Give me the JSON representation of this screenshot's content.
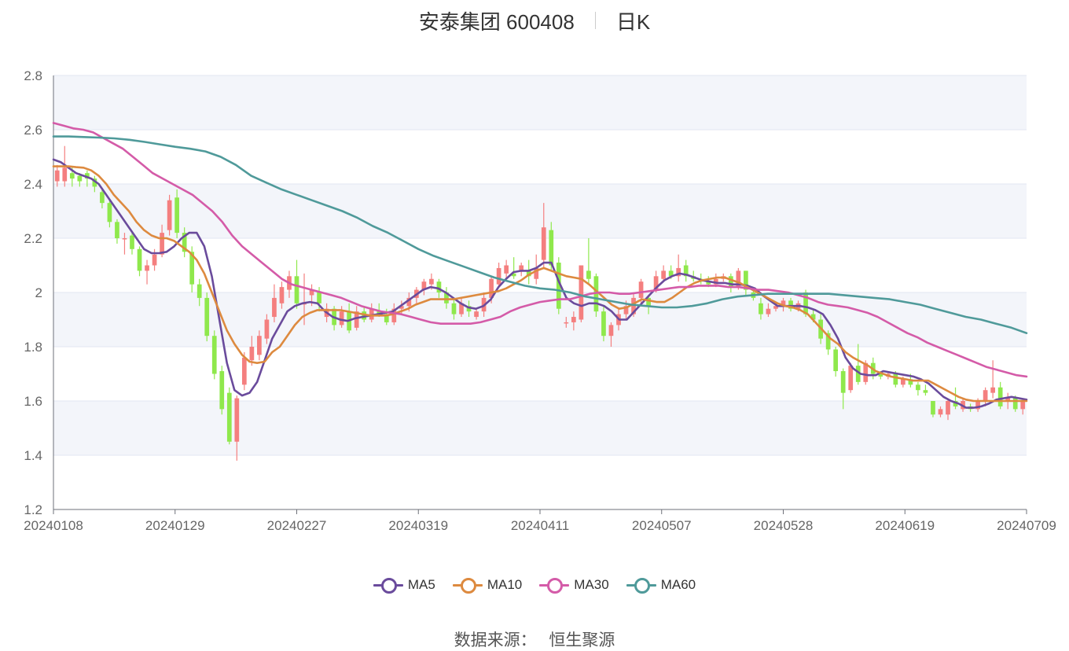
{
  "header": {
    "title": "安泰集团 600408",
    "period": "日K"
  },
  "footer": {
    "source_label": "数据来源：",
    "source_name": "恒生聚源"
  },
  "colors": {
    "up": "#f47f7f",
    "down": "#8fe84c",
    "MA5": "#6a4b9c",
    "MA10": "#dd8a3f",
    "MA30": "#d45ba8",
    "MA60": "#4f9a9a",
    "grid": "#e0e6f1",
    "band": "#f3f5fa"
  },
  "chart_data": {
    "type": "candlestick",
    "title": "安泰集团 600408",
    "ylim": [
      1.2,
      2.8
    ],
    "yticks": [
      "1.2",
      "1.4",
      "1.6",
      "1.8",
      "2",
      "2.2",
      "2.4",
      "2.6",
      "2.8"
    ],
    "xticks": [
      "20240108",
      "20240129",
      "20240227",
      "20240319",
      "20240411",
      "20240507",
      "20240528",
      "20240619",
      "20240709"
    ],
    "ohlc": [
      [
        2.41,
        2.45,
        2.39,
        2.47
      ],
      [
        2.41,
        2.46,
        2.39,
        2.54
      ],
      [
        2.44,
        2.42,
        2.39,
        2.46
      ],
      [
        2.43,
        2.41,
        2.39,
        2.44
      ],
      [
        2.44,
        2.42,
        2.39,
        2.45
      ],
      [
        2.42,
        2.39,
        2.37,
        2.43
      ],
      [
        2.37,
        2.33,
        2.31,
        2.38
      ],
      [
        2.33,
        2.26,
        2.24,
        2.34
      ],
      [
        2.26,
        2.2,
        2.18,
        2.27
      ],
      [
        2.2,
        2.2,
        2.14,
        2.22
      ],
      [
        2.21,
        2.16,
        2.14,
        2.22
      ],
      [
        2.16,
        2.08,
        2.06,
        2.17
      ],
      [
        2.08,
        2.1,
        2.03,
        2.12
      ],
      [
        2.1,
        2.14,
        2.08,
        2.16
      ],
      [
        2.14,
        2.22,
        2.13,
        2.25
      ],
      [
        2.23,
        2.34,
        2.21,
        2.36
      ],
      [
        2.35,
        2.22,
        2.2,
        2.38
      ],
      [
        2.22,
        2.15,
        2.13,
        2.24
      ],
      [
        2.15,
        2.03,
        2.0,
        2.17
      ],
      [
        2.03,
        1.98,
        1.95,
        2.05
      ],
      [
        1.98,
        1.84,
        1.82,
        2.0
      ],
      [
        1.84,
        1.7,
        1.68,
        1.86
      ],
      [
        1.71,
        1.57,
        1.55,
        1.73
      ],
      [
        1.63,
        1.45,
        1.44,
        1.65
      ],
      [
        1.45,
        1.61,
        1.38,
        1.62
      ],
      [
        1.66,
        1.76,
        1.64,
        1.78
      ],
      [
        1.75,
        1.8,
        1.73,
        1.84
      ],
      [
        1.77,
        1.84,
        1.75,
        1.86
      ],
      [
        1.83,
        1.9,
        1.81,
        1.92
      ],
      [
        1.91,
        1.98,
        1.89,
        2.03
      ],
      [
        1.96,
        2.02,
        1.94,
        2.04
      ],
      [
        2.01,
        2.06,
        1.98,
        2.08
      ],
      [
        2.06,
        1.96,
        1.94,
        2.12
      ],
      [
        1.96,
        1.96,
        1.88,
        2.07
      ],
      [
        1.99,
        2.01,
        1.95,
        2.03
      ],
      [
        2.0,
        1.96,
        1.93,
        2.02
      ],
      [
        1.91,
        1.94,
        1.89,
        1.96
      ],
      [
        1.94,
        1.88,
        1.86,
        1.95
      ],
      [
        1.88,
        1.93,
        1.87,
        1.95
      ],
      [
        1.93,
        1.86,
        1.85,
        1.96
      ],
      [
        1.87,
        1.93,
        1.86,
        1.95
      ],
      [
        1.93,
        1.9,
        1.89,
        1.95
      ],
      [
        1.9,
        1.94,
        1.89,
        1.96
      ],
      [
        1.93,
        1.92,
        1.91,
        1.96
      ],
      [
        1.92,
        1.89,
        1.88,
        1.94
      ],
      [
        1.89,
        1.94,
        1.88,
        1.96
      ],
      [
        1.94,
        1.95,
        1.92,
        1.97
      ],
      [
        1.95,
        1.98,
        1.93,
        2.0
      ],
      [
        1.98,
        2.01,
        1.96,
        2.02
      ],
      [
        2.01,
        2.04,
        1.99,
        2.05
      ],
      [
        2.03,
        2.05,
        2.01,
        2.07
      ],
      [
        2.04,
        2.0,
        1.98,
        2.05
      ],
      [
        2.0,
        1.96,
        1.94,
        2.02
      ],
      [
        1.96,
        1.92,
        1.9,
        1.98
      ],
      [
        1.92,
        1.96,
        1.91,
        1.98
      ],
      [
        1.95,
        1.93,
        1.91,
        1.97
      ],
      [
        1.91,
        1.93,
        1.9,
        1.94
      ],
      [
        1.93,
        1.98,
        1.91,
        2.0
      ],
      [
        1.98,
        2.05,
        1.96,
        2.06
      ],
      [
        2.03,
        2.09,
        2.02,
        2.11
      ],
      [
        2.07,
        2.1,
        2.05,
        2.12
      ],
      [
        2.07,
        2.06,
        2.05,
        2.13
      ],
      [
        2.08,
        2.1,
        2.06,
        2.11
      ],
      [
        2.08,
        2.06,
        2.03,
        2.12
      ],
      [
        2.05,
        2.09,
        2.03,
        2.14
      ],
      [
        2.12,
        2.24,
        2.09,
        2.33
      ],
      [
        2.23,
        2.1,
        2.08,
        2.26
      ],
      [
        2.11,
        1.94,
        1.92,
        2.13
      ],
      [
        1.89,
        1.89,
        1.87,
        1.91
      ],
      [
        1.89,
        1.91,
        1.86,
        1.93
      ],
      [
        1.9,
        2.1,
        1.89,
        2.1
      ],
      [
        2.08,
        2.05,
        2.03,
        2.2
      ],
      [
        2.06,
        1.93,
        1.91,
        2.07
      ],
      [
        1.93,
        1.84,
        1.82,
        1.95
      ],
      [
        1.84,
        1.88,
        1.8,
        1.89
      ],
      [
        1.88,
        1.92,
        1.86,
        1.94
      ],
      [
        1.92,
        1.95,
        1.9,
        1.97
      ],
      [
        1.92,
        1.98,
        1.91,
        2.0
      ],
      [
        1.98,
        2.04,
        1.96,
        2.05
      ],
      [
        1.98,
        1.95,
        1.92,
        1.99
      ],
      [
        2.01,
        2.06,
        2.0,
        2.08
      ],
      [
        2.05,
        2.08,
        2.04,
        2.1
      ],
      [
        2.08,
        2.06,
        2.05,
        2.1
      ],
      [
        2.06,
        2.09,
        2.04,
        2.14
      ],
      [
        2.1,
        2.06,
        2.04,
        2.12
      ],
      [
        2.06,
        2.05,
        2.04,
        2.08
      ],
      [
        2.05,
        2.04,
        2.03,
        2.07
      ],
      [
        2.04,
        2.03,
        2.02,
        2.06
      ],
      [
        2.03,
        2.05,
        2.02,
        2.07
      ],
      [
        2.05,
        2.06,
        2.04,
        2.07
      ],
      [
        2.06,
        2.02,
        2.0,
        2.07
      ],
      [
        2.02,
        2.08,
        2.01,
        2.09
      ],
      [
        2.08,
        2.01,
        1.99,
        2.08
      ],
      [
        2.0,
        1.98,
        1.97,
        2.02
      ],
      [
        1.96,
        1.92,
        1.9,
        1.98
      ],
      [
        1.92,
        1.94,
        1.91,
        1.96
      ],
      [
        1.94,
        1.95,
        1.93,
        1.96
      ],
      [
        1.95,
        1.97,
        1.93,
        1.98
      ],
      [
        1.97,
        1.94,
        1.93,
        1.98
      ],
      [
        1.94,
        1.96,
        1.93,
        1.97
      ],
      [
        2.0,
        1.92,
        1.91,
        2.01
      ],
      [
        1.92,
        1.9,
        1.89,
        1.94
      ],
      [
        1.9,
        1.83,
        1.81,
        1.92
      ],
      [
        1.85,
        1.79,
        1.77,
        1.86
      ],
      [
        1.79,
        1.71,
        1.69,
        1.8
      ],
      [
        1.71,
        1.63,
        1.57,
        1.72
      ],
      [
        1.64,
        1.73,
        1.63,
        1.74
      ],
      [
        1.73,
        1.67,
        1.66,
        1.81
      ],
      [
        1.67,
        1.74,
        1.66,
        1.75
      ],
      [
        1.74,
        1.7,
        1.68,
        1.76
      ],
      [
        1.7,
        1.69,
        1.68,
        1.71
      ],
      [
        1.69,
        1.7,
        1.68,
        1.71
      ],
      [
        1.7,
        1.66,
        1.65,
        1.71
      ],
      [
        1.66,
        1.68,
        1.65,
        1.69
      ],
      [
        1.68,
        1.66,
        1.65,
        1.7
      ],
      [
        1.66,
        1.64,
        1.62,
        1.67
      ],
      [
        1.64,
        1.63,
        1.62,
        1.66
      ],
      [
        1.6,
        1.55,
        1.54,
        1.6
      ],
      [
        1.55,
        1.57,
        1.54,
        1.58
      ],
      [
        1.55,
        1.6,
        1.53,
        1.61
      ],
      [
        1.6,
        1.58,
        1.57,
        1.65
      ],
      [
        1.57,
        1.6,
        1.56,
        1.61
      ],
      [
        1.58,
        1.57,
        1.56,
        1.59
      ],
      [
        1.57,
        1.6,
        1.56,
        1.61
      ],
      [
        1.6,
        1.64,
        1.58,
        1.65
      ],
      [
        1.63,
        1.65,
        1.61,
        1.75
      ],
      [
        1.65,
        1.58,
        1.57,
        1.67
      ],
      [
        1.6,
        1.61,
        1.57,
        1.63
      ],
      [
        1.61,
        1.57,
        1.56,
        1.62
      ],
      [
        1.57,
        1.6,
        1.55,
        1.61
      ]
    ],
    "series": [
      {
        "name": "MA5",
        "values": [
          2.49,
          2.48,
          2.46,
          2.44,
          2.43,
          2.42,
          2.4,
          2.36,
          2.32,
          2.28,
          2.24,
          2.2,
          2.16,
          2.145,
          2.145,
          2.15,
          2.17,
          2.2,
          2.22,
          2.22,
          2.17,
          2.06,
          1.9,
          1.74,
          1.64,
          1.62,
          1.63,
          1.67,
          1.75,
          1.83,
          1.88,
          1.93,
          1.95,
          1.96,
          1.965,
          1.96,
          1.93,
          1.91,
          1.9,
          1.895,
          1.905,
          1.91,
          1.915,
          1.92,
          1.925,
          1.93,
          1.95,
          1.97,
          1.99,
          2.01,
          2.02,
          2.015,
          2.0,
          1.98,
          1.96,
          1.945,
          1.94,
          1.95,
          1.975,
          2.02,
          2.05,
          2.075,
          2.08,
          2.08,
          2.09,
          2.11,
          2.11,
          2.04,
          1.98,
          1.96,
          1.95,
          1.96,
          1.96,
          1.95,
          1.93,
          1.9,
          1.9,
          1.93,
          1.96,
          1.99,
          2.02,
          2.045,
          2.06,
          2.07,
          2.065,
          2.055,
          2.045,
          2.04,
          2.035,
          2.035,
          2.03,
          2.03,
          2.025,
          2.015,
          1.99,
          1.97,
          1.95,
          1.95,
          1.95,
          1.95,
          1.945,
          1.935,
          1.92,
          1.88,
          1.83,
          1.76,
          1.72,
          1.7,
          1.695,
          1.695,
          1.71,
          1.705,
          1.7,
          1.695,
          1.69,
          1.68,
          1.665,
          1.64,
          1.615,
          1.6,
          1.59,
          1.575,
          1.575,
          1.58,
          1.59,
          1.605,
          1.61,
          1.615,
          1.61,
          1.605
        ]
      },
      {
        "name": "MA10",
        "values": [
          2.465,
          2.465,
          2.465,
          2.462,
          2.46,
          2.45,
          2.43,
          2.4,
          2.36,
          2.33,
          2.3,
          2.26,
          2.23,
          2.21,
          2.2,
          2.2,
          2.19,
          2.17,
          2.15,
          2.12,
          2.07,
          2.0,
          1.93,
          1.86,
          1.81,
          1.77,
          1.745,
          1.74,
          1.745,
          1.78,
          1.8,
          1.84,
          1.88,
          1.91,
          1.925,
          1.935,
          1.935,
          1.935,
          1.935,
          1.93,
          1.925,
          1.92,
          1.915,
          1.915,
          1.915,
          1.92,
          1.93,
          1.94,
          1.955,
          1.965,
          1.975,
          1.975,
          1.975,
          1.975,
          1.98,
          1.985,
          1.99,
          1.995,
          2.0,
          2.005,
          2.015,
          2.03,
          2.045,
          2.065,
          2.08,
          2.09,
          2.08,
          2.07,
          2.06,
          2.055,
          2.05,
          2.03,
          2.005,
          1.98,
          1.955,
          1.94,
          1.945,
          1.96,
          1.975,
          1.97,
          1.965,
          1.965,
          1.98,
          2.0,
          2.02,
          2.035,
          2.045,
          2.05,
          2.055,
          2.055,
          2.045,
          2.035,
          2.02,
          2.005,
          1.99,
          1.975,
          1.96,
          1.95,
          1.945,
          1.935,
          1.92,
          1.89,
          1.86,
          1.83,
          1.81,
          1.78,
          1.76,
          1.745,
          1.73,
          1.71,
          1.7,
          1.69,
          1.685,
          1.68,
          1.675,
          1.675,
          1.675,
          1.66,
          1.645,
          1.63,
          1.615,
          1.605,
          1.6,
          1.6,
          1.6,
          1.6,
          1.6,
          1.6,
          1.6,
          1.6
        ]
      },
      {
        "name": "MA30",
        "values": [
          2.625,
          2.615,
          2.605,
          2.6,
          2.59,
          2.57,
          2.55,
          2.53,
          2.5,
          2.47,
          2.44,
          2.42,
          2.4,
          2.38,
          2.36,
          2.33,
          2.3,
          2.26,
          2.21,
          2.17,
          2.14,
          2.11,
          2.08,
          2.05,
          2.03,
          2.02,
          2.01,
          2.0,
          1.99,
          1.98,
          1.965,
          1.95,
          1.94,
          1.93,
          1.925,
          1.92,
          1.91,
          1.9,
          1.89,
          1.885,
          1.885,
          1.885,
          1.885,
          1.89,
          1.9,
          1.91,
          1.93,
          1.945,
          1.955,
          1.965,
          1.97,
          1.975,
          1.975,
          1.985,
          1.995,
          2.0,
          2.0,
          1.995,
          1.995,
          2.0,
          2.005,
          2.01,
          2.015,
          2.02,
          2.02,
          2.025,
          2.025,
          2.025,
          2.02,
          2.02,
          2.015,
          2.01,
          2.01,
          2.005,
          2.0,
          1.99,
          1.98,
          1.965,
          1.955,
          1.95,
          1.945,
          1.935,
          1.925,
          1.91,
          1.89,
          1.87,
          1.85,
          1.835,
          1.815,
          1.8,
          1.785,
          1.77,
          1.755,
          1.74,
          1.725,
          1.715,
          1.705,
          1.695,
          1.69
        ]
      },
      {
        "name": "MA60",
        "values": [
          2.575,
          2.575,
          2.573,
          2.571,
          2.568,
          2.563,
          2.555,
          2.546,
          2.537,
          2.53,
          2.52,
          2.5,
          2.47,
          2.43,
          2.405,
          2.38,
          2.36,
          2.34,
          2.32,
          2.3,
          2.275,
          2.245,
          2.22,
          2.19,
          2.16,
          2.135,
          2.115,
          2.095,
          2.075,
          2.055,
          2.04,
          2.025,
          2.015,
          2.01,
          2.0,
          1.985,
          1.975,
          1.965,
          1.955,
          1.95,
          1.945,
          1.945,
          1.95,
          1.96,
          1.975,
          1.985,
          1.99,
          1.995,
          1.995,
          1.995,
          1.995,
          1.995,
          1.99,
          1.985,
          1.98,
          1.975,
          1.965,
          1.955,
          1.94,
          1.925,
          1.91,
          1.9,
          1.885,
          1.87,
          1.85
        ]
      }
    ],
    "legend": [
      "MA5",
      "MA10",
      "MA30",
      "MA60"
    ]
  }
}
